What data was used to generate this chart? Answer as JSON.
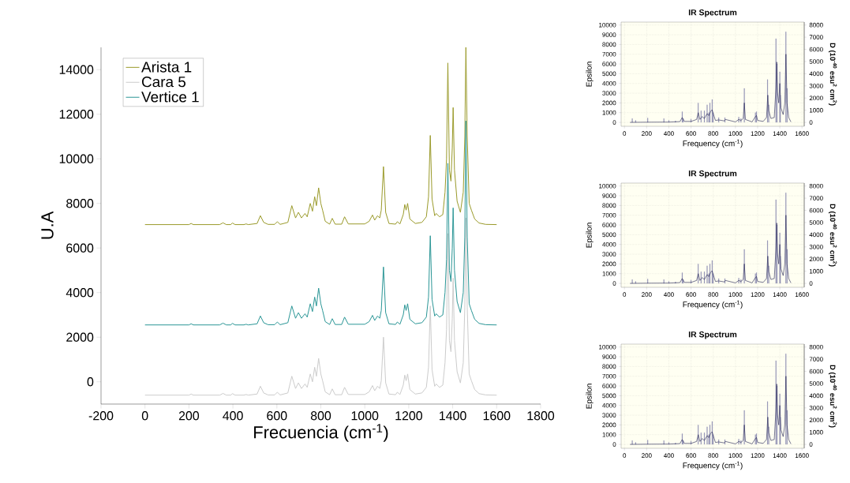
{
  "chart_data": [
    {
      "type": "line",
      "xlabel": "Frecuencia (cm$^{-1}$)",
      "ylabel": "U.A",
      "xlim": [
        -200,
        1800
      ],
      "ylim": [
        -1000,
        15000
      ],
      "xticks": [
        -200,
        0,
        200,
        400,
        600,
        800,
        1000,
        1200,
        1400,
        1600,
        1800
      ],
      "yticks": [
        0,
        2000,
        4000,
        6000,
        8000,
        10000,
        12000,
        14000
      ],
      "legend": "top left",
      "x": [
        0,
        200,
        210,
        220,
        340,
        355,
        370,
        390,
        398,
        410,
        450,
        460,
        470,
        510,
        525,
        540,
        560,
        590,
        602,
        615,
        650,
        668,
        685,
        698,
        712,
        728,
        738,
        752,
        762,
        772,
        780,
        790,
        800,
        808,
        820,
        840,
        852,
        865,
        895,
        908,
        925,
        1000,
        1020,
        1035,
        1045,
        1058,
        1068,
        1075,
        1085,
        1095,
        1110,
        1140,
        1148,
        1160,
        1175,
        1182,
        1188,
        1195,
        1205,
        1230,
        1260,
        1280,
        1290,
        1298,
        1306,
        1318,
        1325,
        1340,
        1355,
        1365,
        1372,
        1378,
        1385,
        1392,
        1398,
        1402,
        1408,
        1420,
        1435,
        1448,
        1455,
        1460,
        1466,
        1475,
        1485,
        1500,
        1520,
        1550,
        1600
      ],
      "series": [
        {
          "name": "Arista 1",
          "color": "#9a9a2a",
          "values": [
            7050,
            7050,
            7100,
            7050,
            7050,
            7130,
            7050,
            7050,
            7120,
            7050,
            7050,
            7080,
            7050,
            7100,
            7450,
            7150,
            7060,
            7060,
            7180,
            7060,
            7150,
            7900,
            7350,
            7600,
            7350,
            7550,
            7400,
            8000,
            7650,
            8300,
            7900,
            8700,
            8000,
            7700,
            7200,
            7070,
            7330,
            7070,
            7070,
            7400,
            7080,
            7080,
            7200,
            7480,
            7250,
            7450,
            7350,
            7700,
            9650,
            7600,
            7100,
            7070,
            7180,
            7080,
            7500,
            7950,
            7700,
            8000,
            7300,
            7100,
            7150,
            7400,
            8300,
            11050,
            8200,
            7450,
            7550,
            7400,
            7500,
            8500,
            10000,
            14300,
            9500,
            9000,
            10500,
            12300,
            9500,
            8100,
            7600,
            8500,
            11000,
            15000,
            11000,
            8000,
            7700,
            7300,
            7120,
            7060,
            7050
          ]
        },
        {
          "name": "Cara 5",
          "color": "#cccccc",
          "values": [
            -600,
            -600,
            -550,
            -600,
            -600,
            -520,
            -600,
            -600,
            -530,
            -600,
            -600,
            -570,
            -600,
            -550,
            -200,
            -500,
            -590,
            -590,
            -470,
            -590,
            -500,
            250,
            -300,
            -50,
            -300,
            -100,
            -250,
            350,
            0,
            650,
            250,
            1050,
            350,
            50,
            -450,
            -580,
            -320,
            -580,
            -580,
            -250,
            -570,
            -570,
            -450,
            -170,
            -400,
            -200,
            -300,
            50,
            2000,
            -50,
            -550,
            -580,
            -470,
            -570,
            -150,
            300,
            50,
            350,
            -350,
            -550,
            -500,
            -250,
            650,
            3400,
            550,
            -200,
            -100,
            -250,
            -150,
            850,
            2350,
            6650,
            1850,
            1350,
            2850,
            4650,
            1850,
            450,
            -50,
            850,
            3350,
            7350,
            3350,
            350,
            50,
            -350,
            -530,
            -590,
            -600
          ]
        },
        {
          "name": "Vertice 1",
          "color": "#2a9696",
          "values": [
            2550,
            2550,
            2600,
            2550,
            2550,
            2630,
            2550,
            2550,
            2620,
            2550,
            2550,
            2580,
            2550,
            2600,
            2950,
            2650,
            2560,
            2560,
            2680,
            2560,
            2650,
            3400,
            2850,
            3100,
            2850,
            3050,
            2900,
            3500,
            3150,
            3800,
            3400,
            4200,
            3500,
            3200,
            2700,
            2570,
            2830,
            2570,
            2570,
            2900,
            2580,
            2580,
            2700,
            2980,
            2750,
            2950,
            2850,
            3200,
            5150,
            3100,
            2600,
            2570,
            2680,
            2580,
            3000,
            3450,
            3200,
            3500,
            2800,
            2600,
            2650,
            2900,
            3800,
            6550,
            3700,
            2950,
            3050,
            2900,
            3000,
            4000,
            5500,
            9800,
            5000,
            4500,
            6000,
            7800,
            5000,
            3600,
            3100,
            4000,
            6500,
            11700,
            6500,
            3500,
            3200,
            2800,
            2620,
            2560,
            2550
          ]
        }
      ]
    },
    {
      "type": "line",
      "title": "IR Spectrum",
      "xlabel": "Frequency (cm$^{-1}$)",
      "ylabel": "Epsilon",
      "y2label": "D (10$^{-40}$ esu$^{2}$ cm$^{2}$)",
      "xlim": [
        -30,
        1620
      ],
      "ylim": [
        -400,
        10300
      ],
      "y2lim": [
        -320,
        8240
      ],
      "xticks": [
        0,
        200,
        400,
        600,
        800,
        1000,
        1200,
        1400,
        1600
      ],
      "yticks": [
        0,
        1000,
        2000,
        3000,
        4000,
        5000,
        6000,
        7000,
        8000,
        9000,
        10000
      ],
      "y2ticks": [
        0,
        1000,
        2000,
        3000,
        4000,
        5000,
        6000,
        7000,
        8000
      ],
      "grid": true,
      "series": [
        {
          "type": "bar",
          "axis": "y2",
          "color": "#7a7aa8",
          "x": [
            70,
            100,
            210,
            355,
            400,
            460,
            520,
            530,
            600,
            665,
            690,
            720,
            745,
            760,
            770,
            790,
            800,
            850,
            905,
            1030,
            1050,
            1080,
            1180,
            1190,
            1290,
            1300,
            1365,
            1375,
            1400,
            1405,
            1455,
            1465
          ],
          "values": [
            320,
            160,
            360,
            320,
            160,
            120,
            880,
            320,
            280,
            1600,
            960,
            960,
            1440,
            800,
            1600,
            1880,
            800,
            400,
            400,
            440,
            320,
            2800,
            800,
            880,
            3520,
            1440,
            6880,
            4800,
            4160,
            2240,
            7440,
            2800
          ]
        },
        {
          "type": "line",
          "color": "#1c1c50",
          "x": [
            50,
            200,
            400,
            500,
            520,
            540,
            600,
            650,
            665,
            680,
            700,
            720,
            745,
            760,
            775,
            790,
            800,
            820,
            850,
            900,
            910,
            1000,
            1030,
            1050,
            1070,
            1080,
            1090,
            1150,
            1180,
            1190,
            1200,
            1250,
            1280,
            1292,
            1300,
            1320,
            1350,
            1365,
            1372,
            1380,
            1390,
            1400,
            1410,
            1430,
            1445,
            1455,
            1465,
            1480,
            1500
          ],
          "values": [
            0,
            20,
            30,
            80,
            500,
            100,
            100,
            300,
            1000,
            300,
            600,
            400,
            900,
            700,
            1100,
            1300,
            900,
            200,
            250,
            150,
            300,
            50,
            300,
            200,
            400,
            2000,
            300,
            50,
            600,
            700,
            200,
            100,
            500,
            2800,
            1200,
            400,
            500,
            3500,
            6200,
            3000,
            2000,
            4000,
            1500,
            800,
            2000,
            7000,
            2000,
            500,
            50
          ]
        }
      ]
    },
    {
      "type": "line",
      "title": "IR Spectrum",
      "xlabel": "Frequency (cm$^{-1}$)",
      "ylabel": "Epsilon",
      "y2label": "D (10$^{-40}$ esu$^{2}$ cm$^{2}$)",
      "xlim": [
        -30,
        1620
      ],
      "ylim": [
        -400,
        10300
      ],
      "y2lim": [
        -320,
        8240
      ],
      "xticks": [
        0,
        200,
        400,
        600,
        800,
        1000,
        1200,
        1400,
        1600
      ],
      "yticks": [
        0,
        1000,
        2000,
        3000,
        4000,
        5000,
        6000,
        7000,
        8000,
        9000,
        10000
      ],
      "y2ticks": [
        0,
        1000,
        2000,
        3000,
        4000,
        5000,
        6000,
        7000,
        8000
      ],
      "grid": true,
      "series": [
        {
          "type": "bar",
          "axis": "y2",
          "color": "#7a7aa8",
          "x": [
            70,
            100,
            210,
            355,
            400,
            460,
            520,
            530,
            600,
            665,
            690,
            720,
            745,
            760,
            770,
            790,
            800,
            850,
            905,
            1030,
            1050,
            1080,
            1180,
            1190,
            1290,
            1300,
            1365,
            1375,
            1400,
            1405,
            1455,
            1465
          ],
          "values": [
            320,
            160,
            360,
            320,
            160,
            120,
            880,
            320,
            280,
            1600,
            960,
            960,
            1440,
            800,
            1600,
            1880,
            800,
            400,
            400,
            440,
            320,
            2800,
            800,
            880,
            3520,
            1440,
            6880,
            4800,
            4160,
            2240,
            7440,
            2800
          ]
        },
        {
          "type": "line",
          "color": "#1c1c50",
          "x": [
            50,
            200,
            400,
            500,
            520,
            540,
            600,
            650,
            665,
            680,
            700,
            720,
            745,
            760,
            775,
            790,
            800,
            820,
            850,
            900,
            910,
            1000,
            1030,
            1050,
            1070,
            1080,
            1090,
            1150,
            1180,
            1190,
            1200,
            1250,
            1280,
            1292,
            1300,
            1320,
            1350,
            1365,
            1372,
            1380,
            1390,
            1400,
            1410,
            1430,
            1445,
            1455,
            1465,
            1480,
            1500
          ],
          "values": [
            0,
            20,
            30,
            80,
            500,
            100,
            100,
            300,
            1000,
            300,
            600,
            400,
            900,
            700,
            1100,
            1300,
            900,
            200,
            250,
            150,
            300,
            50,
            300,
            200,
            400,
            2000,
            300,
            50,
            600,
            700,
            200,
            100,
            500,
            2800,
            1200,
            400,
            500,
            3500,
            6200,
            3000,
            2000,
            4000,
            1500,
            800,
            2000,
            7000,
            2000,
            500,
            50
          ]
        }
      ]
    },
    {
      "type": "line",
      "title": "IR Spectrum",
      "xlabel": "Frequency (cm$^{-1}$)",
      "ylabel": "Epsilon",
      "y2label": "D (10$^{-40}$ esu$^{2}$ cm$^{2}$)",
      "xlim": [
        -30,
        1620
      ],
      "ylim": [
        -400,
        10300
      ],
      "y2lim": [
        -320,
        8240
      ],
      "xticks": [
        0,
        200,
        400,
        600,
        800,
        1000,
        1200,
        1400,
        1600
      ],
      "yticks": [
        0,
        1000,
        2000,
        3000,
        4000,
        5000,
        6000,
        7000,
        8000,
        9000,
        10000
      ],
      "y2ticks": [
        0,
        1000,
        2000,
        3000,
        4000,
        5000,
        6000,
        7000,
        8000
      ],
      "grid": true,
      "series": [
        {
          "type": "bar",
          "axis": "y2",
          "color": "#7a7aa8",
          "x": [
            70,
            100,
            210,
            355,
            400,
            460,
            520,
            530,
            600,
            665,
            690,
            720,
            745,
            760,
            770,
            790,
            800,
            850,
            905,
            1030,
            1050,
            1080,
            1180,
            1190,
            1290,
            1300,
            1365,
            1375,
            1400,
            1405,
            1455,
            1465
          ],
          "values": [
            320,
            160,
            360,
            320,
            160,
            120,
            880,
            320,
            280,
            1600,
            960,
            960,
            1440,
            800,
            1600,
            1880,
            800,
            400,
            400,
            440,
            320,
            2800,
            800,
            880,
            3520,
            1440,
            6880,
            4800,
            4160,
            2240,
            7440,
            2800
          ]
        },
        {
          "type": "line",
          "color": "#1c1c50",
          "x": [
            50,
            200,
            400,
            500,
            520,
            540,
            600,
            650,
            665,
            680,
            700,
            720,
            745,
            760,
            775,
            790,
            800,
            820,
            850,
            900,
            910,
            1000,
            1030,
            1050,
            1070,
            1080,
            1090,
            1150,
            1180,
            1190,
            1200,
            1250,
            1280,
            1292,
            1300,
            1320,
            1350,
            1365,
            1372,
            1380,
            1390,
            1400,
            1410,
            1430,
            1445,
            1455,
            1465,
            1480,
            1500
          ],
          "values": [
            0,
            20,
            30,
            80,
            500,
            100,
            100,
            300,
            1000,
            300,
            600,
            400,
            900,
            700,
            1100,
            1300,
            900,
            200,
            250,
            150,
            300,
            50,
            300,
            200,
            400,
            2000,
            300,
            50,
            600,
            700,
            200,
            100,
            500,
            2800,
            1200,
            400,
            500,
            3500,
            6200,
            3000,
            2000,
            4000,
            1500,
            800,
            2000,
            7000,
            2000,
            500,
            50
          ]
        }
      ]
    }
  ]
}
